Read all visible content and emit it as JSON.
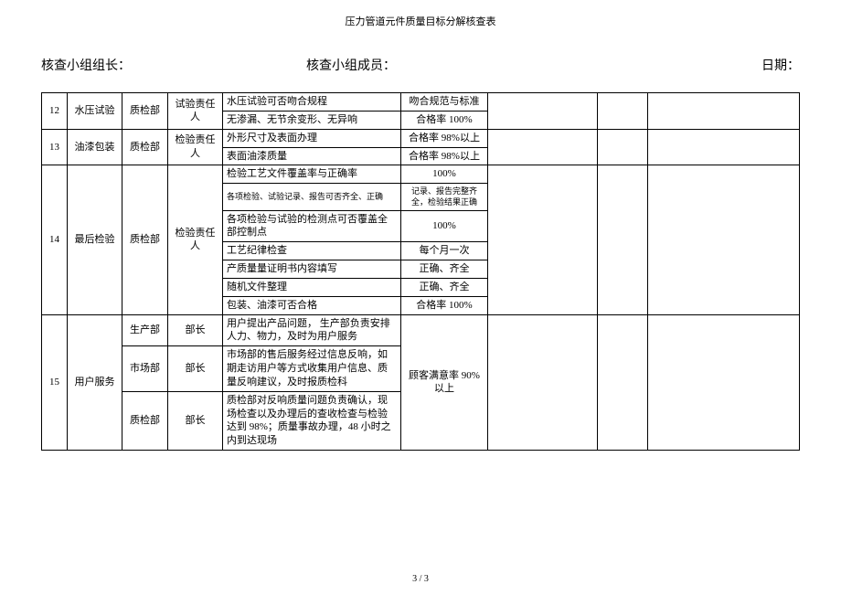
{
  "doc_title": "压力管道元件质量目标分解核查表",
  "header": {
    "leader_label": "核查小组组长：",
    "members_label": "核查小组成员：",
    "date_label": "日期："
  },
  "rows": [
    {
      "num": "12",
      "item": "水压试验",
      "dept": "质检部",
      "resp": "试验责任人",
      "lines": [
        {
          "desc": "水压试验可否吻合规程",
          "std": "吻合规范与标准"
        },
        {
          "desc": "无渗漏、无节余变形、无异响",
          "std": "合格率 100%"
        }
      ]
    },
    {
      "num": "13",
      "item": "油漆包装",
      "dept": "质检部",
      "resp": "检验责任人",
      "lines": [
        {
          "desc": "外形尺寸及表面办理",
          "std": "合格率 98%以上"
        },
        {
          "desc": "表面油漆质量",
          "std": "合格率 98%以上"
        }
      ]
    },
    {
      "num": "14",
      "item": "最后检验",
      "dept": "质检部",
      "resp": "检验责任人",
      "lines": [
        {
          "desc": "检验工艺文件覆盖率与正确率",
          "std": "100%"
        },
        {
          "desc": "各项检验、试验记录、报告可否齐全、正确",
          "std": "记录、报告完整齐全，检验结果正确",
          "small": true
        },
        {
          "desc": "各项检验与试验的检测点可否覆盖全部控制点",
          "std": "100%"
        },
        {
          "desc": "工艺纪律检查",
          "std": "每个月一次"
        },
        {
          "desc": "产质量量证明书内容填写",
          "std": "正确、齐全"
        },
        {
          "desc": "随机文件整理",
          "std": "正确、齐全"
        },
        {
          "desc": "包装、油漆可否合格",
          "std": "合格率 100%"
        }
      ]
    },
    {
      "num": "15",
      "item": "用户服务",
      "subs": [
        {
          "dept": "生产部",
          "resp": "部长",
          "desc": "用户提出产品问题，  生产部负责安排人力、物力，及时为用户服务"
        },
        {
          "dept": "市场部",
          "resp": "部长",
          "desc": "市场部的售后服务经过信息反响，如期走访用户等方式收集用户信息、质量反响建议，及时报质检科"
        },
        {
          "dept": "质检部",
          "resp": "部长",
          "desc": "质检部对反响质量问题负责确认，现场检查以及办理后的查收检查与检验达到 98%；质量事故办理，48 小时之内到达现场"
        }
      ],
      "std": "顾客满意率 90%以上"
    }
  ],
  "footer": "3 / 3"
}
